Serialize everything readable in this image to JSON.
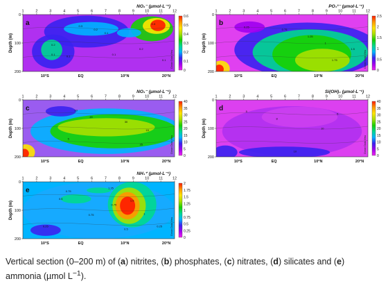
{
  "caption": {
    "prefix": "Vertical section (0–200 m) of (",
    "l_a": "a",
    "t_a": ") nitrites, (",
    "l_b": "b",
    "t_b": ") phosphates, (",
    "l_c": "c",
    "t_c": ") nitrates, (",
    "l_d": "d",
    "t_d": ") silicates and (",
    "l_e": "e",
    "t_e": ") ammonia (µmol L",
    "sup": "−1",
    "end": ")."
  },
  "chart_data": [
    {
      "type": "heatmap",
      "panel": "a",
      "title": "NO₂⁻ (µmol·L⁻¹)",
      "ylabel": "Depth (m)",
      "stations": [
        "1",
        "2",
        "3",
        "4",
        "5",
        "6",
        "7",
        "8",
        "9",
        "10",
        "11",
        "12"
      ],
      "yticks": [
        0,
        100,
        200
      ],
      "ylim": [
        0,
        200
      ],
      "xlat_labels": [
        "10°S",
        "EQ",
        "10°N",
        "20°N"
      ],
      "colorbar": {
        "ticks": [
          "0",
          "0.1",
          "0.2",
          "0.3",
          "0.4",
          "0.5",
          "0.6"
        ],
        "range": [
          0,
          0.6
        ]
      },
      "contour_labels": [
        "0.2",
        "0.3",
        "0.1",
        "0.2",
        "0.1",
        "0.3",
        "0.1",
        "0.2",
        "0.1",
        "0.1"
      ],
      "watermark": "Ocean Data View"
    },
    {
      "type": "heatmap",
      "panel": "b",
      "title": "PO₄³⁻ (µmol·L⁻¹)",
      "ylabel": "Depth (m)",
      "stations": [
        "1",
        "2",
        "3",
        "4",
        "5",
        "6",
        "7",
        "8",
        "9",
        "10",
        "11",
        "12"
      ],
      "yticks": [
        0,
        100,
        200
      ],
      "ylim": [
        0,
        200
      ],
      "xlat_labels": [
        "10°S",
        "EQ",
        "10°N",
        "20°N"
      ],
      "colorbar": {
        "ticks": [
          "0",
          "0.5",
          "1",
          "1.5",
          "2",
          "2.5"
        ],
        "range": [
          0,
          2.5
        ]
      },
      "contour_labels": [
        "0.25",
        "0.75",
        "1.25",
        "1",
        "1.5",
        "1.75"
      ],
      "watermark": "Ocean Data View"
    },
    {
      "type": "heatmap",
      "panel": "c",
      "title": "NO₃⁻ (µmol·L⁻¹)",
      "ylabel": "Depth (m)",
      "stations": [
        "1",
        "2",
        "3",
        "4",
        "5",
        "6",
        "7",
        "8",
        "9",
        "10",
        "11",
        "12"
      ],
      "yticks": [
        0,
        100,
        200
      ],
      "ylim": [
        0,
        200
      ],
      "xlat_labels": [
        "10°S",
        "EQ",
        "10°N",
        "20°N"
      ],
      "colorbar": {
        "ticks": [
          "0",
          "5",
          "10",
          "15",
          "20",
          "25",
          "30",
          "35",
          "40"
        ],
        "range": [
          0,
          40
        ]
      },
      "contour_labels": [
        "10",
        "20",
        "30",
        "15",
        "5",
        "25"
      ],
      "watermark": "Ocean Data View"
    },
    {
      "type": "heatmap",
      "panel": "d",
      "title": "Si(OH)₄ (µmol·L⁻¹)",
      "ylabel": "Depth (m)",
      "stations": [
        "1",
        "2",
        "3",
        "4",
        "5",
        "6",
        "7",
        "8",
        "9",
        "10",
        "11",
        "12"
      ],
      "yticks": [
        0,
        100,
        200
      ],
      "ylim": [
        0,
        200
      ],
      "xlat_labels": [
        "10°S",
        "EQ",
        "10°N",
        "20°N"
      ],
      "colorbar": {
        "ticks": [
          "0",
          "5",
          "10",
          "15",
          "20",
          "25",
          "30",
          "35",
          "40"
        ],
        "range": [
          0,
          40
        ]
      },
      "contour_labels": [
        "5",
        "8",
        "5",
        "10",
        "10"
      ],
      "watermark": "Ocean Data View"
    },
    {
      "type": "heatmap",
      "panel": "e",
      "title": "NH₄⁺ (µmol·L⁻¹)",
      "ylabel": "Depth (m)",
      "stations": [
        "1",
        "2",
        "3",
        "4",
        "5",
        "6",
        "7",
        "8",
        "9",
        "10",
        "11",
        "12"
      ],
      "yticks": [
        0,
        100,
        200
      ],
      "ylim": [
        0,
        200
      ],
      "xlat_labels": [
        "10°S",
        "EQ",
        "10°N",
        "20°N"
      ],
      "colorbar": {
        "ticks": [
          "0",
          "0.25",
          "0.5",
          "0.75",
          "1",
          "1.25",
          "1.5",
          "1.75",
          "2"
        ],
        "range": [
          0,
          2
        ]
      },
      "contour_labels": [
        "0.75",
        "1.25",
        "0.5",
        "0.25",
        "0.75",
        "1.5",
        "1",
        "0.25",
        "0.5",
        "0.75"
      ],
      "watermark": "Ocean Data View"
    }
  ]
}
